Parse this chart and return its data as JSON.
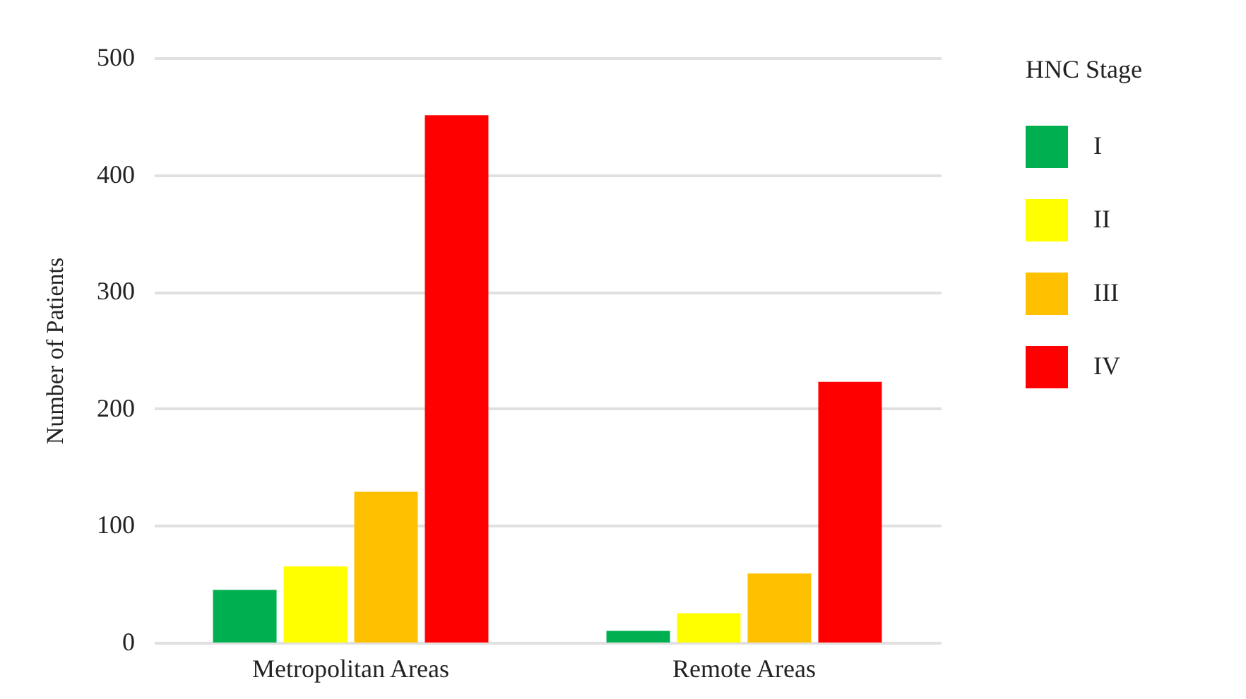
{
  "chart_data": {
    "type": "bar",
    "ylabel": "Number of Patients",
    "legend_title": "HNC Stage",
    "categories": [
      "Metropolitan Areas",
      "Remote Areas"
    ],
    "series": [
      {
        "name": "I",
        "color": "#00b050",
        "values": [
          45,
          10
        ]
      },
      {
        "name": "II",
        "color": "#ffff00",
        "values": [
          65,
          25
        ]
      },
      {
        "name": "III",
        "color": "#ffc000",
        "values": [
          129,
          59
        ]
      },
      {
        "name": "IV",
        "color": "#ff0000",
        "values": [
          451,
          223
        ]
      }
    ],
    "ylim": [
      0,
      500
    ],
    "yticks": [
      0,
      100,
      200,
      300,
      400,
      500
    ],
    "grid": "y",
    "legend": "right"
  }
}
